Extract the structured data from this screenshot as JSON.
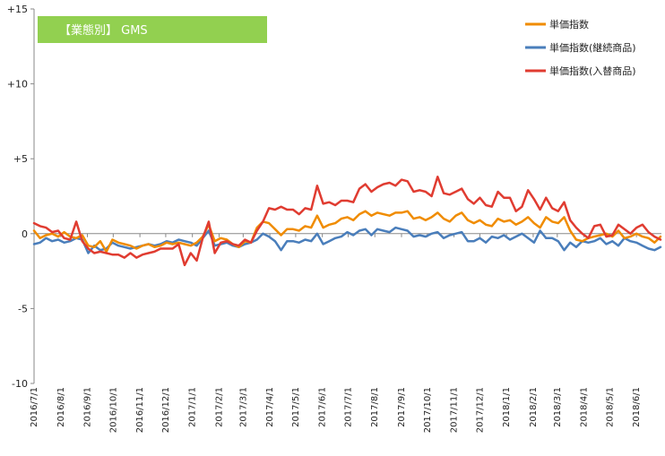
{
  "chart_data": {
    "type": "line",
    "title": "【業態別】 GMS",
    "xlabel": "",
    "ylabel": "",
    "ylim": [
      -10,
      15
    ],
    "yticks": [
      {
        "value": 15,
        "label": "+15"
      },
      {
        "value": 10,
        "label": "+10"
      },
      {
        "value": 5,
        "label": "+5"
      },
      {
        "value": 0,
        "label": "0"
      },
      {
        "value": -5,
        "label": "-5"
      },
      {
        "value": -10,
        "label": "-10"
      }
    ],
    "x_start": "2016-07-01",
    "x_end": "2018-06-30",
    "x_ticks": [
      "2016/7/1",
      "2016/8/1",
      "2016/9/1",
      "2016/10/1",
      "2016/11/1",
      "2016/12/1",
      "2017/1/1",
      "2017/2/1",
      "2017/3/1",
      "2017/4/1",
      "2017/5/1",
      "2017/6/1",
      "2017/7/1",
      "2017/8/1",
      "2017/9/1",
      "2017/10/1",
      "2017/11/1",
      "2017/12/1",
      "2018/1/1",
      "2018/2/1",
      "2018/3/1",
      "2018/4/1",
      "2018/5/1",
      "2018/6/1"
    ],
    "grid": false,
    "legend_position": "top-right",
    "title_box_color": "#92d050",
    "x": [
      "2016-07-01",
      "2016-07-08",
      "2016-07-15",
      "2016-07-22",
      "2016-07-29",
      "2016-08-05",
      "2016-08-12",
      "2016-08-19",
      "2016-08-26",
      "2016-09-02",
      "2016-09-09",
      "2016-09-16",
      "2016-09-23",
      "2016-09-30",
      "2016-10-07",
      "2016-10-14",
      "2016-10-21",
      "2016-10-28",
      "2016-11-04",
      "2016-11-11",
      "2016-11-18",
      "2016-11-25",
      "2016-12-02",
      "2016-12-09",
      "2016-12-16",
      "2016-12-23",
      "2016-12-30",
      "2017-01-06",
      "2017-01-13",
      "2017-01-20",
      "2017-01-27",
      "2017-02-03",
      "2017-02-10",
      "2017-02-17",
      "2017-02-24",
      "2017-03-03",
      "2017-03-10",
      "2017-03-17",
      "2017-03-24",
      "2017-03-31",
      "2017-04-07",
      "2017-04-14",
      "2017-04-21",
      "2017-04-28",
      "2017-05-05",
      "2017-05-12",
      "2017-05-19",
      "2017-05-26",
      "2017-06-02",
      "2017-06-09",
      "2017-06-16",
      "2017-06-23",
      "2017-06-30",
      "2017-07-07",
      "2017-07-14",
      "2017-07-21",
      "2017-07-28",
      "2017-08-04",
      "2017-08-11",
      "2017-08-18",
      "2017-08-25",
      "2017-09-01",
      "2017-09-08",
      "2017-09-15",
      "2017-09-22",
      "2017-09-29",
      "2017-10-06",
      "2017-10-13",
      "2017-10-20",
      "2017-10-27",
      "2017-11-03",
      "2017-11-10",
      "2017-11-17",
      "2017-11-24",
      "2017-12-01",
      "2017-12-08",
      "2017-12-15",
      "2017-12-22",
      "2017-12-29",
      "2018-01-05",
      "2018-01-12",
      "2018-01-19",
      "2018-01-26",
      "2018-02-02",
      "2018-02-09",
      "2018-02-16",
      "2018-02-23",
      "2018-03-02",
      "2018-03-09",
      "2018-03-16",
      "2018-03-23",
      "2018-03-30",
      "2018-04-06",
      "2018-04-13",
      "2018-04-20",
      "2018-04-27",
      "2018-05-04",
      "2018-05-11",
      "2018-05-18",
      "2018-05-25",
      "2018-06-01",
      "2018-06-08",
      "2018-06-15",
      "2018-06-22",
      "2018-06-29"
    ],
    "series": [
      {
        "name": "単価指数",
        "color": "#f08c00",
        "values": [
          0.2,
          -0.3,
          -0.1,
          0.0,
          -0.2,
          0.1,
          -0.2,
          -0.3,
          -0.1,
          -0.8,
          -0.9,
          -0.5,
          -1.2,
          -0.4,
          -0.6,
          -0.7,
          -0.8,
          -1.0,
          -0.8,
          -0.7,
          -0.9,
          -0.8,
          -0.6,
          -0.7,
          -0.6,
          -0.7,
          -0.8,
          -0.6,
          -0.2,
          0.6,
          -0.5,
          -0.3,
          -0.4,
          -0.7,
          -0.9,
          -0.5,
          -0.6,
          0.4,
          0.8,
          0.7,
          0.3,
          -0.1,
          0.3,
          0.3,
          0.2,
          0.5,
          0.4,
          1.2,
          0.4,
          0.6,
          0.7,
          1.0,
          1.1,
          0.9,
          1.3,
          1.5,
          1.2,
          1.4,
          1.3,
          1.2,
          1.4,
          1.4,
          1.5,
          1.0,
          1.1,
          0.9,
          1.1,
          1.4,
          1.0,
          0.8,
          1.2,
          1.4,
          0.9,
          0.7,
          0.9,
          0.6,
          0.5,
          1.0,
          0.8,
          0.9,
          0.6,
          0.8,
          1.1,
          0.7,
          0.4,
          1.1,
          0.8,
          0.7,
          1.1,
          0.2,
          -0.4,
          -0.5,
          -0.3,
          -0.2,
          -0.1,
          0.0,
          -0.2,
          0.2,
          -0.3,
          -0.2,
          0.0,
          -0.2,
          -0.3,
          -0.6,
          -0.2
        ]
      },
      {
        "name": "単価指数(継続商品)",
        "color": "#4a7ebb",
        "values": [
          -0.7,
          -0.6,
          -0.3,
          -0.5,
          -0.4,
          -0.6,
          -0.5,
          -0.3,
          -0.4,
          -1.3,
          -0.8,
          -1.1,
          -1.0,
          -0.6,
          -0.8,
          -0.9,
          -1.0,
          -0.9,
          -0.8,
          -0.7,
          -0.8,
          -0.7,
          -0.5,
          -0.6,
          -0.4,
          -0.5,
          -0.6,
          -0.8,
          -0.3,
          0.2,
          -0.8,
          -0.7,
          -0.6,
          -0.8,
          -0.9,
          -0.7,
          -0.6,
          -0.4,
          0.0,
          -0.2,
          -0.5,
          -1.1,
          -0.5,
          -0.5,
          -0.6,
          -0.4,
          -0.5,
          0.0,
          -0.7,
          -0.5,
          -0.3,
          -0.2,
          0.1,
          -0.1,
          0.2,
          0.3,
          -0.1,
          0.3,
          0.2,
          0.1,
          0.4,
          0.3,
          0.2,
          -0.2,
          -0.1,
          -0.2,
          0.0,
          0.1,
          -0.3,
          -0.1,
          0.0,
          0.1,
          -0.5,
          -0.5,
          -0.3,
          -0.6,
          -0.2,
          -0.3,
          -0.1,
          -0.4,
          -0.2,
          0.0,
          -0.3,
          -0.6,
          0.2,
          -0.3,
          -0.3,
          -0.5,
          -1.1,
          -0.6,
          -0.9,
          -0.5,
          -0.6,
          -0.5,
          -0.3,
          -0.7,
          -0.5,
          -0.8,
          -0.3,
          -0.5,
          -0.6,
          -0.8,
          -1.0,
          -1.1,
          -0.9
        ]
      },
      {
        "name": "単価指数(入替商品)",
        "color": "#e03c31",
        "values": [
          0.7,
          0.5,
          0.4,
          0.1,
          0.2,
          -0.3,
          -0.4,
          0.8,
          -0.5,
          -1.0,
          -1.3,
          -1.2,
          -1.3,
          -1.4,
          -1.4,
          -1.6,
          -1.3,
          -1.6,
          -1.4,
          -1.3,
          -1.2,
          -1.0,
          -1.0,
          -1.0,
          -0.7,
          -2.1,
          -1.3,
          -1.8,
          -0.3,
          0.8,
          -1.3,
          -0.6,
          -0.5,
          -0.7,
          -0.8,
          -0.4,
          -0.6,
          0.2,
          0.8,
          1.7,
          1.6,
          1.8,
          1.6,
          1.6,
          1.3,
          1.7,
          1.6,
          3.2,
          2.0,
          2.1,
          1.9,
          2.2,
          2.2,
          2.1,
          3.0,
          3.3,
          2.8,
          3.1,
          3.3,
          3.4,
          3.2,
          3.6,
          3.5,
          2.8,
          2.9,
          2.8,
          2.5,
          3.8,
          2.7,
          2.6,
          2.8,
          3.0,
          2.3,
          2.0,
          2.4,
          1.9,
          1.8,
          2.8,
          2.4,
          2.4,
          1.5,
          1.8,
          2.9,
          2.3,
          1.6,
          2.4,
          1.7,
          1.5,
          2.1,
          0.9,
          0.4,
          0.0,
          -0.3,
          0.5,
          0.6,
          -0.2,
          -0.1,
          0.6,
          0.3,
          0.0,
          0.4,
          0.6,
          0.1,
          -0.2,
          -0.4
        ]
      }
    ]
  }
}
